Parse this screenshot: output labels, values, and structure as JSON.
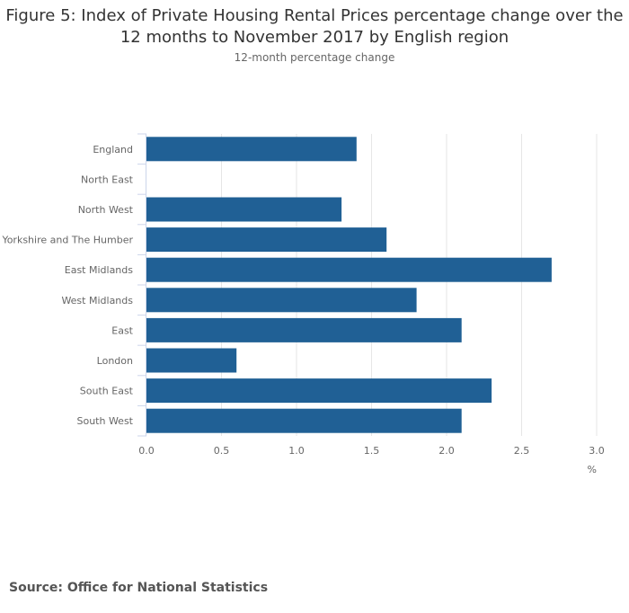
{
  "chart_data": {
    "type": "bar",
    "orientation": "horizontal",
    "title": "Figure 5: Index of Private Housing Rental Prices percentage change over the 12 months to November 2017 by English region",
    "title_lines": [
      "Figure 5: Index of Private Housing Rental Prices percentage change over the",
      "12 months to November 2017 by English region"
    ],
    "subtitle": "12-month percentage change",
    "categories": [
      "England",
      "North East",
      "North West",
      "Yorkshire and The Humber",
      "East Midlands",
      "West Midlands",
      "East",
      "London",
      "South East",
      "South West"
    ],
    "values": [
      1.4,
      0.0,
      1.3,
      1.6,
      2.7,
      1.8,
      2.1,
      0.6,
      2.3,
      2.1
    ],
    "xlabel": "%",
    "ylabel": "",
    "xlim": [
      0,
      3.0
    ],
    "xticks": [
      "0.0",
      "0.5",
      "1.0",
      "1.5",
      "2.0",
      "2.5",
      "3.0"
    ],
    "grid": true,
    "bar_color": "#206095",
    "source": "Source: Office for National Statistics"
  }
}
